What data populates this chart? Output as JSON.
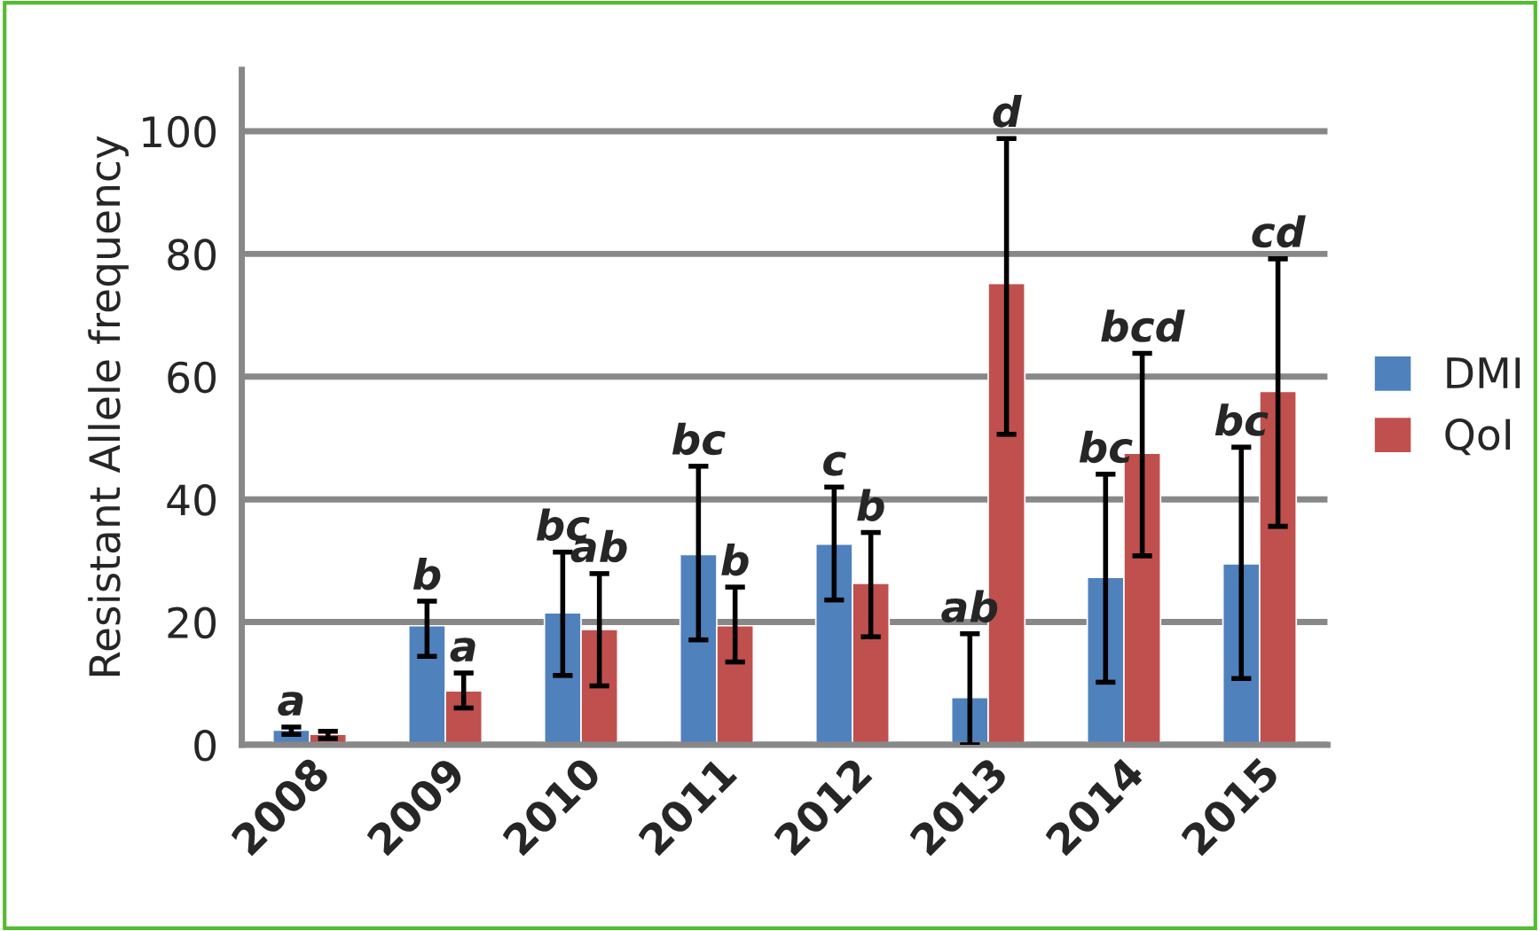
{
  "chart_data": {
    "type": "bar",
    "ylabel": "Resistant Allele frequency",
    "categories": [
      "2008",
      "2009",
      "2010",
      "2011",
      "2012",
      "2013",
      "2014",
      "2015"
    ],
    "series": [
      {
        "name": "DMI",
        "color": "#4f81bd",
        "values": [
          2.4,
          19.4,
          21.5,
          31.0,
          32.7,
          7.7,
          27.3,
          29.5
        ],
        "errors": [
          [
            1.7,
            2.9
          ],
          [
            14.4,
            23.4
          ],
          [
            11.3,
            31.4
          ],
          [
            17.1,
            45.4
          ],
          [
            23.6,
            42.0
          ],
          [
            0,
            18.1
          ],
          [
            10.2,
            44.1
          ],
          [
            10.8,
            48.5
          ]
        ],
        "value_labels": [
          "a",
          "b",
          "bc",
          "bc",
          "c",
          "ab",
          "bc",
          "bc"
        ]
      },
      {
        "name": "QoI",
        "color": "#c0504d",
        "values": [
          1.7,
          8.8,
          18.8,
          19.4,
          26.3,
          75.2,
          47.5,
          57.6
        ],
        "errors": [
          [
            1.0,
            2.2
          ],
          [
            6.0,
            11.7
          ],
          [
            9.6,
            27.9
          ],
          [
            13.5,
            25.7
          ],
          [
            17.6,
            34.6
          ],
          [
            50.6,
            98.8
          ],
          [
            30.8,
            63.8
          ],
          [
            35.6,
            79.2
          ]
        ]
      }
    ],
    "ylim": [
      0,
      110
    ],
    "yticks": [
      0,
      20,
      40,
      60,
      80,
      100
    ],
    "grid": "y",
    "legend": "right",
    "annotations": [
      {
        "text": "a",
        "x": "2009",
        "y": 11.7
      },
      {
        "text": "ab",
        "x": "2010",
        "y": 27.9
      },
      {
        "text": "b",
        "x": "2011",
        "y": 25.7
      },
      {
        "text": "b",
        "x": "2012",
        "y": 34.6
      },
      {
        "text": "d",
        "x": "2013",
        "y": 98.8
      },
      {
        "text": "bcd",
        "x": "2014",
        "y": 63.8
      },
      {
        "text": "cd",
        "x": "2015",
        "y": 79.2
      }
    ]
  }
}
